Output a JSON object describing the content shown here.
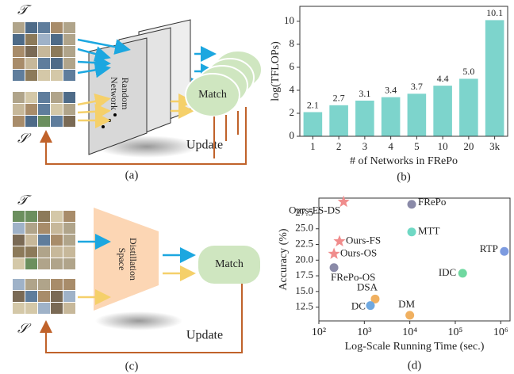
{
  "chart_data": [
    {
      "type": "bar",
      "caption": "(b)",
      "ylabel": "log(TFLOPs)",
      "xlabel": "# of Networks in FRePo",
      "categories": [
        "1",
        "2",
        "3",
        "4",
        "5",
        "10",
        "20",
        "3k"
      ],
      "values": [
        2.1,
        2.7,
        3.1,
        3.4,
        3.7,
        4.4,
        5.0,
        10.1
      ],
      "value_labels": [
        "2.1",
        "2.7",
        "3.1",
        "3.4",
        "3.7",
        "4.4",
        "5.0",
        "10.1"
      ],
      "color": "#7dd4cc",
      "ylim": [
        0,
        11.3
      ],
      "yticks": [
        0,
        2,
        4,
        6,
        8,
        10
      ]
    },
    {
      "type": "scatter",
      "caption": "(d)",
      "ylabel": "Accuracy (%)",
      "xlabel": "Log-Scale Running Time (sec.)",
      "xscale": "log",
      "xlim": [
        100,
        1600000
      ],
      "ylim": [
        10.3,
        29.9
      ],
      "xticks": [
        {
          "value": 100,
          "label": "10²"
        },
        {
          "value": 1000,
          "label": "10³"
        },
        {
          "value": 10000,
          "label": "10⁴"
        },
        {
          "value": 100000,
          "label": "10⁵"
        },
        {
          "value": 1000000,
          "label": "10⁶"
        }
      ],
      "yticks": [
        12.5,
        {
          "value": 15,
          "label": "15.0"
        },
        17.5,
        {
          "value": 20,
          "label": "20.0"
        },
        22.5,
        {
          "value": 25,
          "label": "25.0"
        },
        27.5
      ],
      "series": [
        {
          "name": "Ours-FS-DS",
          "color": "#f08c8c",
          "marker": "star",
          "x": [
            350
          ],
          "values": [
            29.3
          ]
        },
        {
          "name": "Ours-FS",
          "color": "#f08c8c",
          "marker": "star",
          "x": [
            284
          ],
          "values": [
            23.0
          ]
        },
        {
          "name": "Ours-OS",
          "color": "#f08c8c",
          "marker": "star",
          "x": [
            215
          ],
          "values": [
            21.0
          ]
        },
        {
          "name": "FRePo-OS",
          "color": "#8a8aa8",
          "marker": "circle",
          "x": [
            215
          ],
          "values": [
            18.8
          ]
        },
        {
          "name": "FRePo",
          "color": "#8a8aa8",
          "marker": "circle",
          "x": [
            11000
          ],
          "values": [
            28.9
          ]
        },
        {
          "name": "MTT",
          "color": "#6fd8c4",
          "marker": "circle",
          "x": [
            11000
          ],
          "values": [
            24.5
          ]
        },
        {
          "name": "RTP",
          "color": "#7d9be0",
          "marker": "circle",
          "x": [
            1200000
          ],
          "values": [
            21.4
          ]
        },
        {
          "name": "IDC",
          "color": "#6fd8a0",
          "marker": "circle",
          "x": [
            145000
          ],
          "values": [
            17.9
          ]
        },
        {
          "name": "DSA",
          "color": "#f0b060",
          "marker": "circle",
          "x": [
            1730
          ],
          "values": [
            13.8
          ]
        },
        {
          "name": "DC",
          "color": "#6fa8e0",
          "marker": "circle",
          "x": [
            1360
          ],
          "values": [
            12.75
          ]
        },
        {
          "name": "DM",
          "color": "#f0b060",
          "marker": "circle",
          "x": [
            10000
          ],
          "values": [
            11.2
          ]
        }
      ]
    }
  ],
  "diagram_a": {
    "caption": "(a)",
    "set_t": "𝒯",
    "set_s": "𝒮",
    "network_lines": [
      "Random",
      "Network"
    ],
    "match": "Match",
    "update": "Update"
  },
  "diagram_c": {
    "caption": "(c)",
    "set_t": "𝒯",
    "set_s": "𝒮",
    "space_lines": [
      "Distillation",
      "Space"
    ],
    "match": "Match",
    "update": "Update"
  }
}
